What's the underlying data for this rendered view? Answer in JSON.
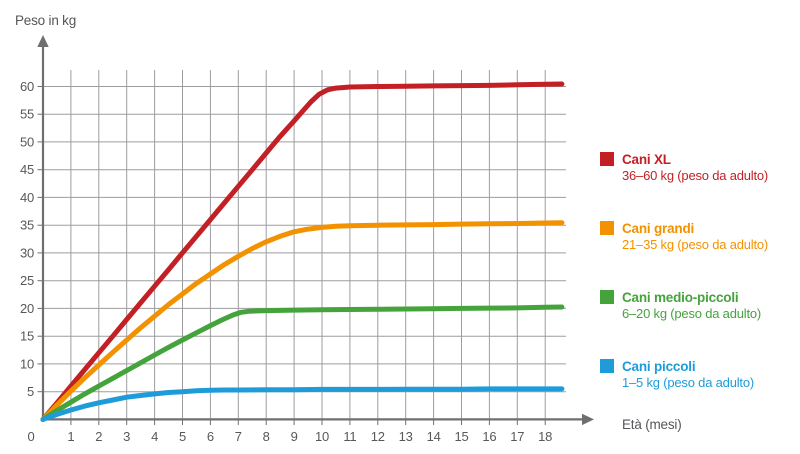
{
  "page": {
    "background": "#ffffff"
  },
  "chart_data": {
    "type": "line",
    "title": "",
    "ylabel": "Peso in kg",
    "xlabel": "Età (mesi)",
    "xlim": [
      0,
      19
    ],
    "ylim": [
      0,
      63
    ],
    "grid": true,
    "legend_position": "right",
    "axis_color": "#6e6f71",
    "grid_color": "#9d9da0",
    "tick_label_color": "#58585a",
    "x_ticks": [
      0,
      1,
      2,
      3,
      4,
      5,
      6,
      7,
      8,
      9,
      10,
      11,
      12,
      13,
      14,
      15,
      16,
      17,
      18
    ],
    "y_ticks": [
      5,
      10,
      15,
      20,
      25,
      30,
      35,
      40,
      45,
      50,
      55,
      60
    ],
    "series": [
      {
        "name": "Cani XL",
        "range_label": "36–60 kg (peso da adulto)",
        "color": "#c32026",
        "adult_weight_range_kg": [
          36,
          60
        ],
        "points": [
          [
            0,
            0
          ],
          [
            0.5,
            3
          ],
          [
            1,
            6
          ],
          [
            1.5,
            9
          ],
          [
            2,
            12
          ],
          [
            2.5,
            15
          ],
          [
            3,
            18
          ],
          [
            3.5,
            21
          ],
          [
            4,
            24
          ],
          [
            4.5,
            27
          ],
          [
            5,
            30
          ],
          [
            5.5,
            33
          ],
          [
            6,
            36
          ],
          [
            6.5,
            39
          ],
          [
            7,
            42
          ],
          [
            7.5,
            45
          ],
          [
            8,
            48
          ],
          [
            8.5,
            51
          ],
          [
            9,
            53.8
          ],
          [
            9.3,
            55.5
          ],
          [
            9.6,
            57.2
          ],
          [
            9.9,
            58.6
          ],
          [
            10.2,
            59.4
          ],
          [
            10.5,
            59.7
          ],
          [
            11,
            59.9
          ],
          [
            12,
            60
          ],
          [
            13,
            60.05
          ],
          [
            14,
            60.1
          ],
          [
            15,
            60.15
          ],
          [
            16,
            60.2
          ],
          [
            17,
            60.3
          ],
          [
            18,
            60.4
          ],
          [
            18.6,
            60.45
          ]
        ]
      },
      {
        "name": "Cani grandi",
        "range_label": "21–35 kg (peso da adulto)",
        "color": "#f39200",
        "adult_weight_range_kg": [
          21,
          35
        ],
        "points": [
          [
            0,
            0
          ],
          [
            0.5,
            2.6
          ],
          [
            1,
            5.1
          ],
          [
            1.5,
            7.5
          ],
          [
            2,
            9.8
          ],
          [
            2.5,
            12.1
          ],
          [
            3,
            14.3
          ],
          [
            3.5,
            16.5
          ],
          [
            4,
            18.6
          ],
          [
            4.5,
            20.7
          ],
          [
            5,
            22.6
          ],
          [
            5.5,
            24.5
          ],
          [
            6,
            26.2
          ],
          [
            6.5,
            27.9
          ],
          [
            7,
            29.4
          ],
          [
            7.5,
            30.8
          ],
          [
            8,
            32
          ],
          [
            8.5,
            33
          ],
          [
            9,
            33.8
          ],
          [
            9.5,
            34.3
          ],
          [
            10,
            34.6
          ],
          [
            10.5,
            34.8
          ],
          [
            11,
            34.9
          ],
          [
            12,
            35
          ],
          [
            13,
            35.05
          ],
          [
            14,
            35.1
          ],
          [
            15,
            35.2
          ],
          [
            16,
            35.25
          ],
          [
            17,
            35.3
          ],
          [
            18,
            35.4
          ],
          [
            18.6,
            35.45
          ]
        ]
      },
      {
        "name": "Cani medio-piccoli",
        "range_label": "6–20 kg (peso da adulto)",
        "color": "#45a33c",
        "adult_weight_range_kg": [
          6,
          20
        ],
        "points": [
          [
            0,
            0
          ],
          [
            0.5,
            1.6
          ],
          [
            1,
            3.1
          ],
          [
            1.5,
            4.6
          ],
          [
            2,
            6
          ],
          [
            2.5,
            7.4
          ],
          [
            3,
            8.8
          ],
          [
            3.5,
            10.2
          ],
          [
            4,
            11.6
          ],
          [
            4.5,
            13
          ],
          [
            5,
            14.3
          ],
          [
            5.5,
            15.6
          ],
          [
            6,
            16.9
          ],
          [
            6.4,
            17.9
          ],
          [
            6.8,
            18.8
          ],
          [
            7.1,
            19.3
          ],
          [
            7.4,
            19.5
          ],
          [
            8,
            19.6
          ],
          [
            9,
            19.7
          ],
          [
            10,
            19.75
          ],
          [
            11,
            19.8
          ],
          [
            12,
            19.85
          ],
          [
            13,
            19.9
          ],
          [
            14,
            19.95
          ],
          [
            15,
            20
          ],
          [
            16,
            20.05
          ],
          [
            17,
            20.1
          ],
          [
            18,
            20.2
          ],
          [
            18.6,
            20.25
          ]
        ]
      },
      {
        "name": "Cani piccoli",
        "range_label": "1–5 kg (peso da adulto)",
        "color": "#1e9cd9",
        "adult_weight_range_kg": [
          1,
          5
        ],
        "points": [
          [
            0,
            0
          ],
          [
            0.5,
            0.9
          ],
          [
            1,
            1.7
          ],
          [
            1.5,
            2.4
          ],
          [
            2,
            3
          ],
          [
            2.5,
            3.5
          ],
          [
            3,
            4
          ],
          [
            3.5,
            4.3
          ],
          [
            4,
            4.6
          ],
          [
            4.5,
            4.85
          ],
          [
            5,
            5
          ],
          [
            5.5,
            5.15
          ],
          [
            6,
            5.25
          ],
          [
            6.5,
            5.3
          ],
          [
            7,
            5.3
          ],
          [
            8,
            5.35
          ],
          [
            9,
            5.35
          ],
          [
            10,
            5.4
          ],
          [
            11,
            5.4
          ],
          [
            12,
            5.4
          ],
          [
            13,
            5.45
          ],
          [
            14,
            5.45
          ],
          [
            15,
            5.45
          ],
          [
            16,
            5.5
          ],
          [
            17,
            5.5
          ],
          [
            18,
            5.5
          ],
          [
            18.6,
            5.5
          ]
        ]
      }
    ]
  }
}
